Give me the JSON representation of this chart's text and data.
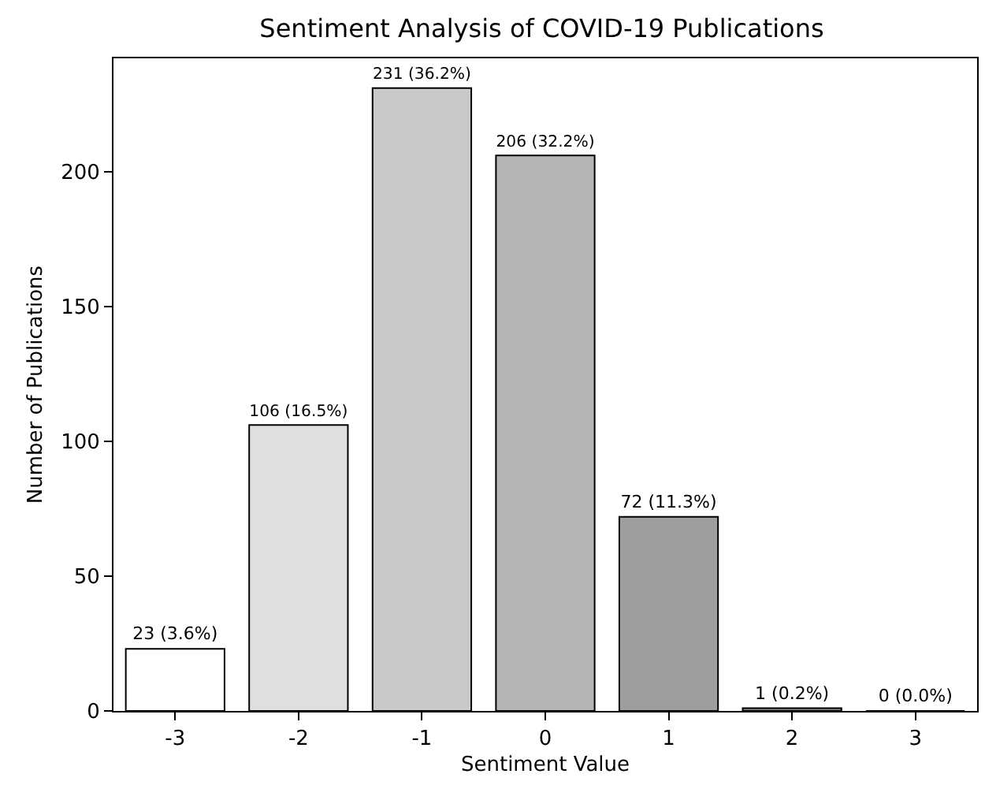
{
  "chart_data": {
    "type": "bar",
    "title": "Sentiment Analysis of COVID-19 Publications",
    "xlabel": "Sentiment Value",
    "ylabel": "Number of Publications",
    "categories": [
      "-3",
      "-2",
      "-1",
      "0",
      "1",
      "2",
      "3"
    ],
    "values": [
      23,
      106,
      231,
      206,
      72,
      1,
      0
    ],
    "colors": [
      "#ffffff",
      "#e0e0e0",
      "#c9c9c9",
      "#b4b4b4",
      "#9e9e9e",
      "#888888",
      "#707070"
    ],
    "value_labels": [
      "23 (3.6%)",
      "106 (16.5%)",
      "231 (36.2%)",
      "206 (32.2%)",
      "72 (11.3%)",
      "1 (0.2%)",
      "0 (0.0%)"
    ],
    "ylim": [
      0,
      242
    ],
    "yticks": [
      0,
      50,
      100,
      150,
      200
    ],
    "grid": false,
    "legend": false
  }
}
